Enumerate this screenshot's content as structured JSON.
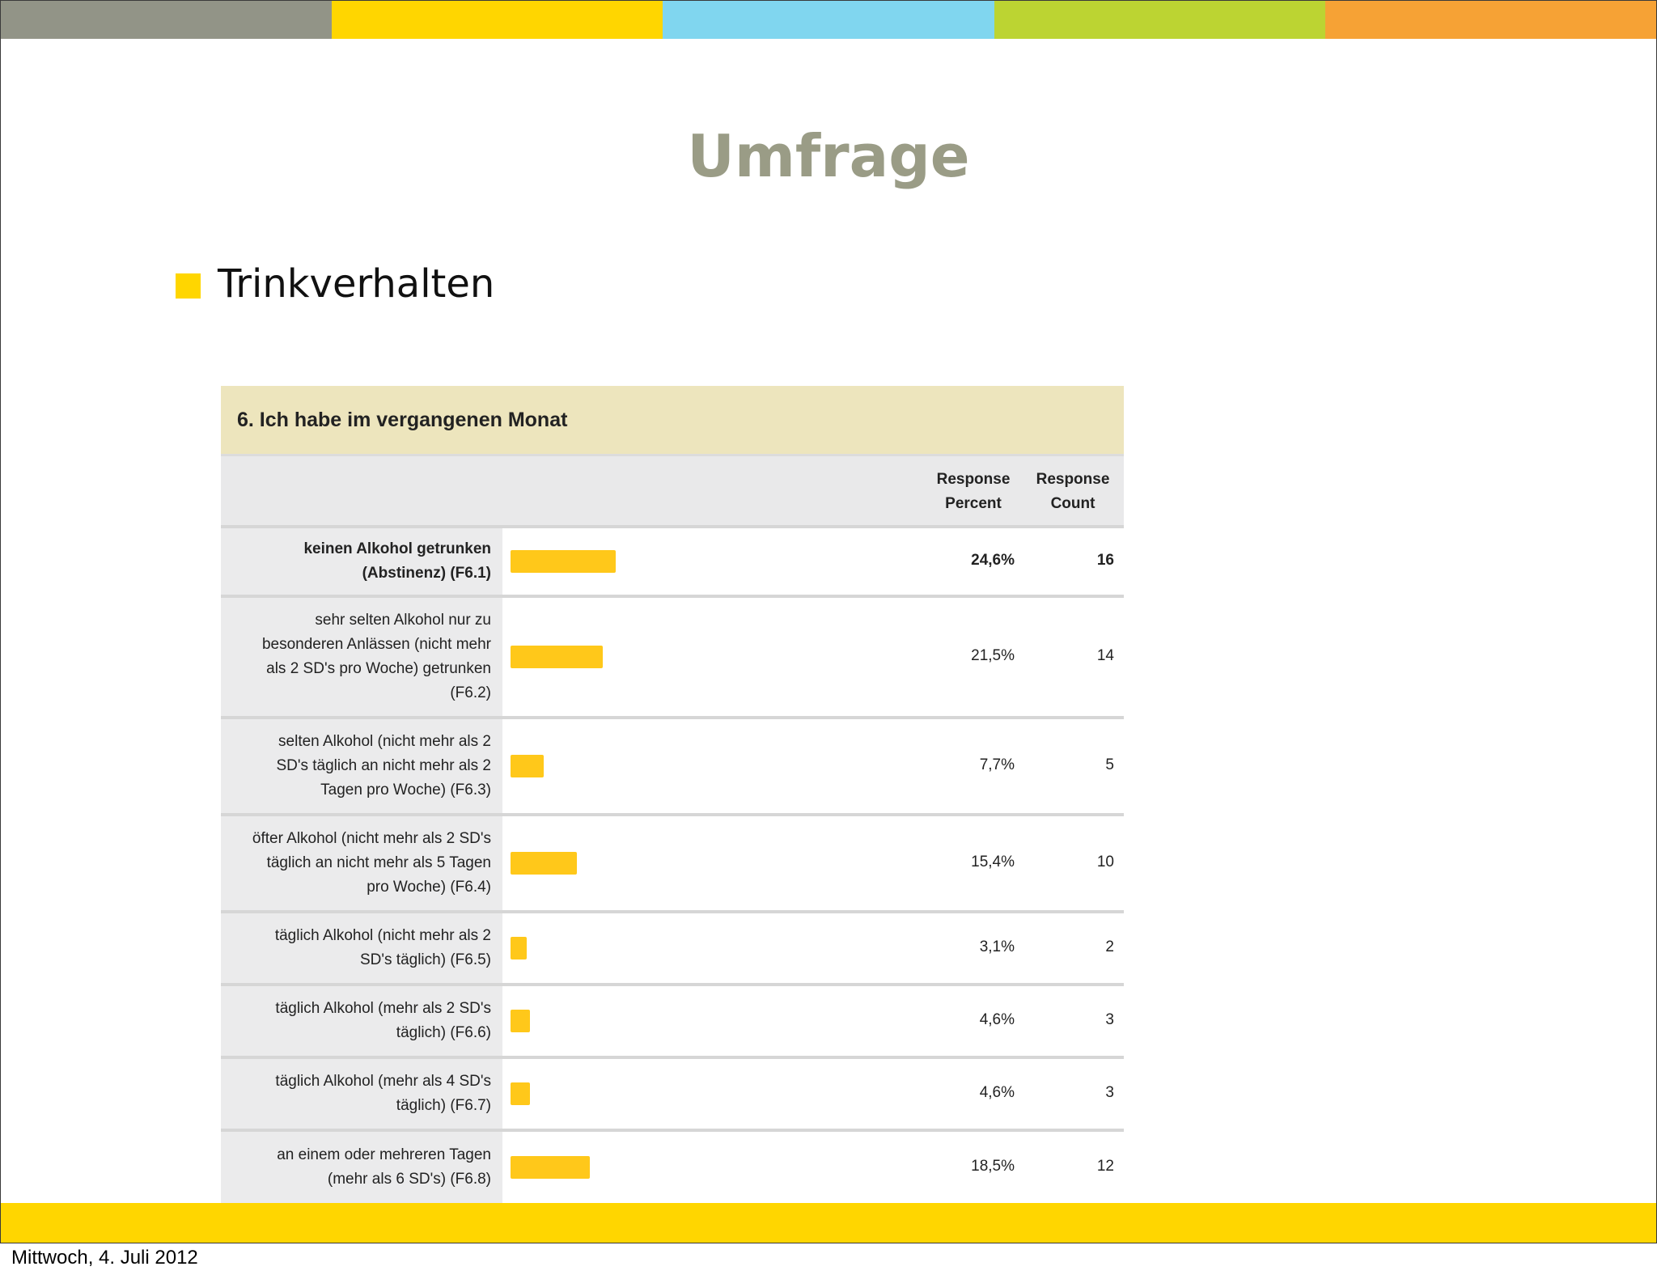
{
  "colors": {
    "top_bar": [
      "#929487",
      "#ffd600",
      "#80d6ef",
      "#bcd432",
      "#f6a235"
    ],
    "bottom_bar": "#ffd600",
    "title": "#9a9c86",
    "bullet": "#ffd600",
    "bar": "#ffc81a",
    "question_header_bg": "#ede5bd"
  },
  "slide": {
    "title": "Umfrage",
    "bullet": "Trinkverhalten",
    "footer_date": "Mittwoch, 4. Juli 2012"
  },
  "survey": {
    "question": "6. Ich habe im vergangenen Monat",
    "col_percent_line1": "Response",
    "col_percent_line2": "Percent",
    "col_count_line1": "Response",
    "col_count_line2": "Count",
    "max_percent": 100,
    "rows": [
      {
        "label_lines": [
          "keinen Alkohol getrunken",
          "(Abstinenz) (F6.1)"
        ],
        "percent": "24,6%",
        "percent_value": 24.6,
        "count": "16",
        "bold": true
      },
      {
        "label_lines": [
          "sehr selten Alkohol nur zu",
          "besonderen Anlässen (nicht mehr",
          "als 2 SD's pro Woche) getrunken",
          "(F6.2)"
        ],
        "percent": "21,5%",
        "percent_value": 21.5,
        "count": "14",
        "bold": false
      },
      {
        "label_lines": [
          "selten Alkohol (nicht mehr als 2",
          "SD's täglich an nicht mehr als 2",
          "Tagen pro Woche) (F6.3)"
        ],
        "percent": "7,7%",
        "percent_value": 7.7,
        "count": "5",
        "bold": false
      },
      {
        "label_lines": [
          "öfter Alkohol (nicht mehr als 2 SD's",
          "täglich an nicht mehr als 5 Tagen",
          "pro Woche) (F6.4)"
        ],
        "percent": "15,4%",
        "percent_value": 15.4,
        "count": "10",
        "bold": false
      },
      {
        "label_lines": [
          "täglich Alkohol (nicht mehr als 2",
          "SD's täglich) (F6.5)"
        ],
        "percent": "3,1%",
        "percent_value": 3.1,
        "count": "2",
        "bold": false
      },
      {
        "label_lines": [
          "täglich Alkohol (mehr als 2 SD's",
          "täglich) (F6.6)"
        ],
        "percent": "4,6%",
        "percent_value": 4.6,
        "count": "3",
        "bold": false
      },
      {
        "label_lines": [
          "täglich Alkohol (mehr als 4 SD's",
          "täglich) (F6.7)"
        ],
        "percent": "4,6%",
        "percent_value": 4.6,
        "count": "3",
        "bold": false
      },
      {
        "label_lines": [
          "an einem oder mehreren Tagen",
          "(mehr als 6 SD's) (F6.8)"
        ],
        "percent": "18,5%",
        "percent_value": 18.5,
        "count": "12",
        "bold": false
      }
    ]
  }
}
